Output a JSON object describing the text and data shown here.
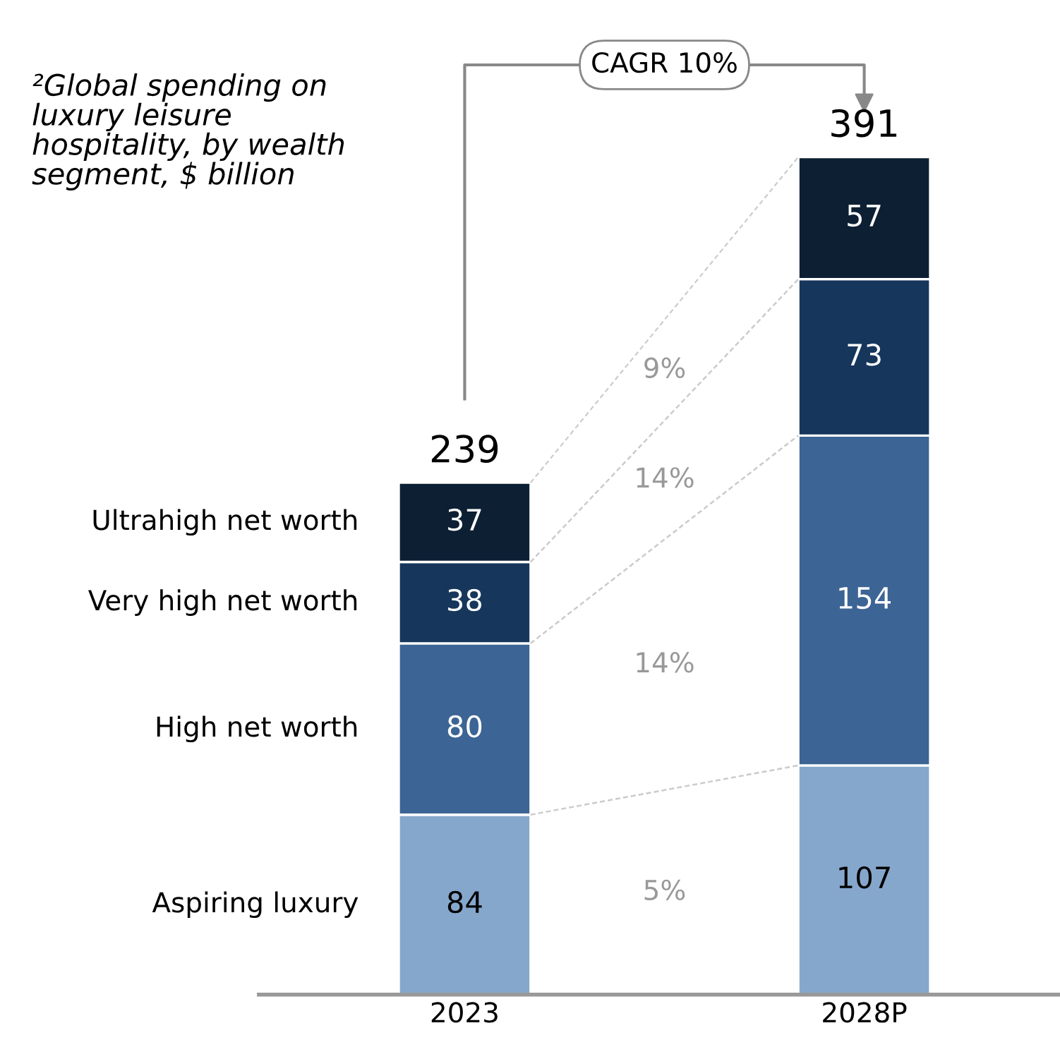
{
  "chart_data": {
    "type": "bar",
    "stacked": true,
    "title": "²Global spending on\nluxury leisure\nhospitality, by wealth\nsegment, $ billion",
    "categories": [
      "2023",
      "2028P"
    ],
    "series": [
      {
        "name": "Aspiring luxury",
        "color": "#86a7cc",
        "values": [
          84,
          107
        ]
      },
      {
        "name": "High net worth",
        "color": "#3c6494",
        "values": [
          80,
          154
        ]
      },
      {
        "name": "Very high net worth",
        "color": "#16365c",
        "values": [
          38,
          73
        ]
      },
      {
        "name": "Ultrahigh net worth",
        "color": "#0d1f33",
        "values": [
          37,
          57
        ]
      }
    ],
    "data_labels": true,
    "totals": [
      "239",
      "391"
    ],
    "annotations": [
      "CAGR 10%",
      "9%",
      "14%",
      "14%",
      "5%"
    ],
    "legend": false,
    "grid": false
  }
}
